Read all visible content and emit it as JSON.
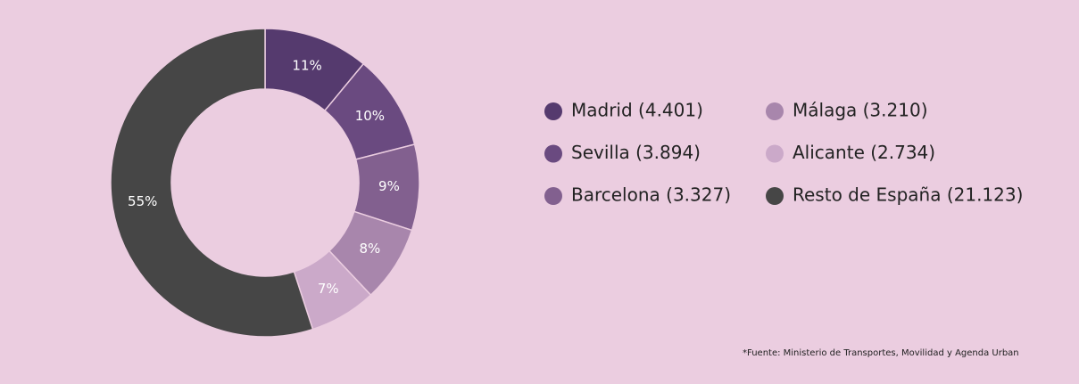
{
  "chart_data": {
    "type": "donut",
    "categories": [
      "Madrid (4.401)",
      "Sevilla (3.894)",
      "Barcelona (3.327)",
      "Málaga (3.210)",
      "Alicante (2.734)",
      "Resto de España (21.123)"
    ],
    "values": [
      11,
      10,
      9,
      8,
      7,
      55
    ],
    "value_labels": [
      "11%",
      "10%",
      "9%",
      "8%",
      "7%",
      "55%"
    ],
    "colors": [
      "#553a6e",
      "#6a4a80",
      "#82608f",
      "#a886ac",
      "#cba9c9",
      "#464646"
    ],
    "footnote": "*Fuente: Ministerio de Transportes, Movilidad y Agenda Urban"
  }
}
